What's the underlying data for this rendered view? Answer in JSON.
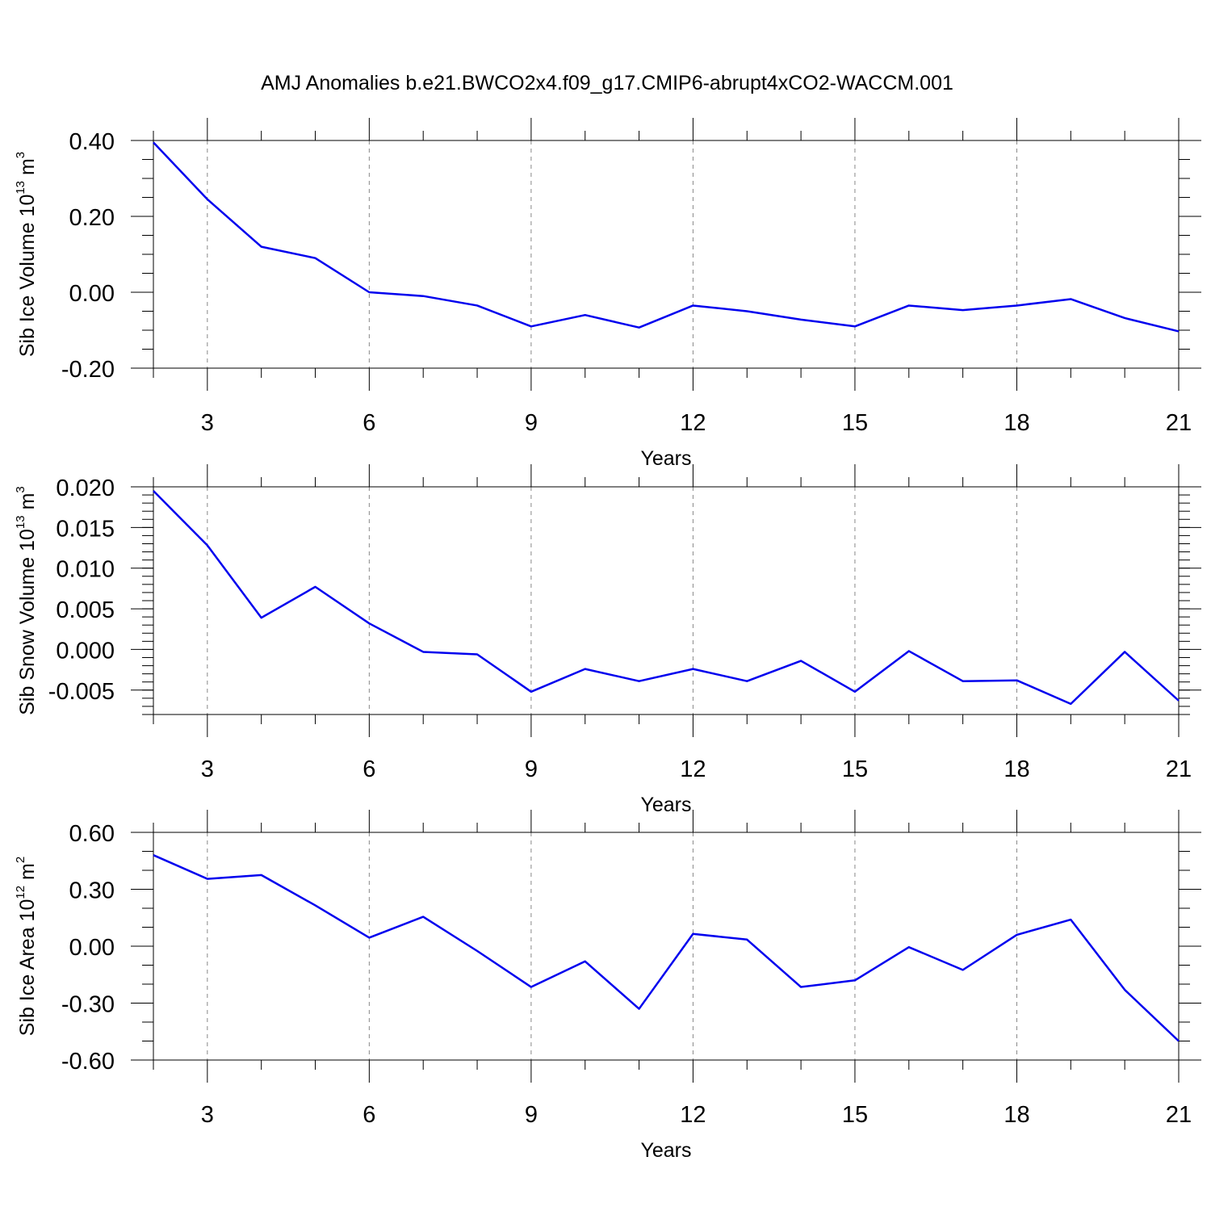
{
  "title": "AMJ Anomalies b.e21.BWCO2x4.f09_g17.CMIP6-abrupt4xCO2-WACCM.001",
  "colors": {
    "series": "#0000ee",
    "frame": "#000000",
    "grid": "#888888"
  },
  "chart_data": [
    {
      "type": "line",
      "ylabel": {
        "main": "Sib Ice Volume 10",
        "exp": "13",
        "unit": " m",
        "unit_exp": "3"
      },
      "xlabel": "Years",
      "xlim": [
        2,
        21
      ],
      "ylim": [
        -0.2,
        0.4
      ],
      "x_ticks": [
        3,
        6,
        9,
        12,
        15,
        18,
        21
      ],
      "x_tick_labels": [
        "3",
        "6",
        "9",
        "12",
        "15",
        "18",
        "21"
      ],
      "y_ticks": [
        -0.2,
        0.0,
        0.2,
        0.4
      ],
      "y_tick_labels": [
        "-0.20",
        "0.00",
        "0.20",
        "0.40"
      ],
      "y_minor_step": 0.05,
      "grid": "vertical-dashed",
      "x": [
        2,
        3,
        4,
        5,
        6,
        7,
        8,
        9,
        10,
        11,
        12,
        13,
        14,
        15,
        16,
        17,
        18,
        19,
        20,
        21
      ],
      "values": [
        0.395,
        0.245,
        0.12,
        0.09,
        0.0,
        -0.01,
        -0.035,
        -0.09,
        -0.06,
        -0.093,
        -0.035,
        -0.05,
        -0.072,
        -0.09,
        -0.035,
        -0.047,
        -0.035,
        -0.018,
        -0.068,
        -0.103
      ]
    },
    {
      "type": "line",
      "ylabel": {
        "main": "Sib Snow Volume 10",
        "exp": "13",
        "unit": " m",
        "unit_exp": "3"
      },
      "xlabel": "Years",
      "xlim": [
        2,
        21
      ],
      "ylim": [
        -0.008,
        0.02
      ],
      "x_ticks": [
        3,
        6,
        9,
        12,
        15,
        18,
        21
      ],
      "x_tick_labels": [
        "3",
        "6",
        "9",
        "12",
        "15",
        "18",
        "21"
      ],
      "y_ticks": [
        -0.005,
        0.0,
        0.005,
        0.01,
        0.015,
        0.02
      ],
      "y_tick_labels": [
        "-0.005",
        "0.000",
        "0.005",
        "0.010",
        "0.015",
        "0.020"
      ],
      "y_minor_step": 0.001,
      "grid": "vertical-dashed",
      "x": [
        2,
        3,
        4,
        5,
        6,
        7,
        8,
        9,
        10,
        11,
        12,
        13,
        14,
        15,
        16,
        17,
        18,
        19,
        20,
        21
      ],
      "values": [
        0.0195,
        0.0128,
        0.0039,
        0.0077,
        0.0032,
        -0.0003,
        -0.0006,
        -0.0052,
        -0.0024,
        -0.0039,
        -0.0024,
        -0.0039,
        -0.0014,
        -0.0052,
        -0.0002,
        -0.0039,
        -0.0038,
        -0.0067,
        -0.0003,
        -0.0063
      ]
    },
    {
      "type": "line",
      "ylabel": {
        "main": "Sib Ice Area 10",
        "exp": "12",
        "unit": " m",
        "unit_exp": "2"
      },
      "xlabel": "Years",
      "xlim": [
        2,
        21
      ],
      "ylim": [
        -0.6,
        0.6
      ],
      "x_ticks": [
        3,
        6,
        9,
        12,
        15,
        18,
        21
      ],
      "x_tick_labels": [
        "3",
        "6",
        "9",
        "12",
        "15",
        "18",
        "21"
      ],
      "y_ticks": [
        -0.6,
        -0.3,
        0.0,
        0.3,
        0.6
      ],
      "y_tick_labels": [
        "-0.60",
        "-0.30",
        "0.00",
        "0.30",
        "0.60"
      ],
      "y_minor_step": 0.1,
      "grid": "vertical-dashed",
      "x": [
        2,
        3,
        4,
        5,
        6,
        7,
        8,
        9,
        10,
        11,
        12,
        13,
        14,
        15,
        16,
        17,
        18,
        19,
        20,
        21
      ],
      "values": [
        0.48,
        0.355,
        0.375,
        0.215,
        0.045,
        0.155,
        -0.025,
        -0.215,
        -0.08,
        -0.33,
        0.065,
        0.035,
        -0.215,
        -0.18,
        -0.005,
        -0.125,
        0.06,
        0.14,
        -0.23,
        -0.5
      ]
    }
  ]
}
